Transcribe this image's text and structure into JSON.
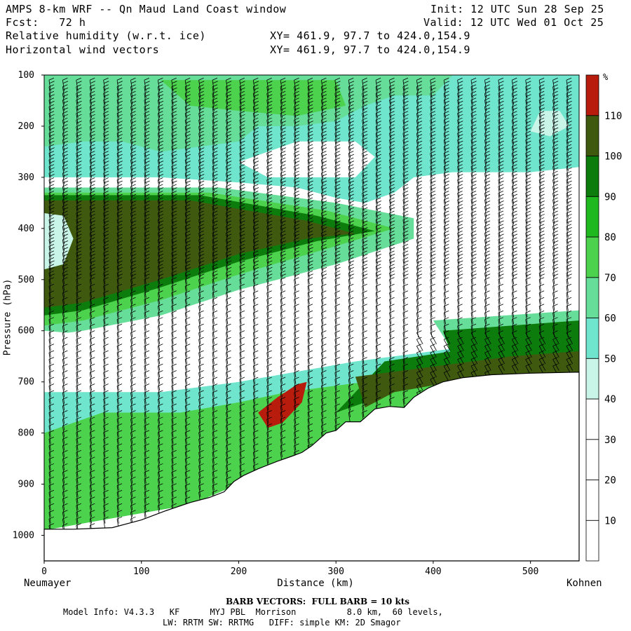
{
  "header": {
    "title": "AMPS 8-km WRF -- Qn Maud Land Coast window",
    "fcst": "Fcst:   72 h",
    "init": "Init: 12 UTC Sun 28 Sep 25",
    "valid": "Valid: 12 UTC Wed 01 Oct 25",
    "field1": "Relative humidity (w.r.t. ice)",
    "field1_xy": "XY= 461.9, 97.7 to 424.0,154.9",
    "field2": "Horizontal wind vectors",
    "field2_xy": "XY= 461.9, 97.7 to 424.0,154.9"
  },
  "chart_data": {
    "type": "cross-section",
    "xlabel": "Distance (km)",
    "ylabel": "Pressure (hPa)",
    "x_start_label": "Neumayer",
    "x_end_label": "Kohnen",
    "xlim": [
      0,
      550
    ],
    "ylim": [
      1050,
      100
    ],
    "x_ticks": [
      0,
      100,
      200,
      300,
      400,
      500
    ],
    "y_ticks": [
      100,
      200,
      300,
      400,
      500,
      600,
      700,
      800,
      900,
      1000
    ],
    "colorbar": {
      "unit": "%",
      "levels": [
        "10",
        "20",
        "30",
        "40",
        "50",
        "60",
        "70",
        "80",
        "90",
        "100",
        "110"
      ],
      "colors": [
        "#ffffff",
        "#ffffff",
        "#ffffff",
        "#c8f5e8",
        "#6ee5cc",
        "#66dd99",
        "#4cd24c",
        "#1fb81f",
        "#0c7d0c",
        "#3f5a0f",
        "#b81c0c"
      ]
    },
    "terrain_surface_hpa": [
      [
        0,
        988
      ],
      [
        30,
        988
      ],
      [
        60,
        984
      ],
      [
        90,
        975
      ],
      [
        120,
        955
      ],
      [
        150,
        935
      ],
      [
        180,
        920
      ],
      [
        200,
        898
      ],
      [
        215,
        880
      ],
      [
        230,
        855
      ],
      [
        245,
        845
      ],
      [
        262,
        835
      ],
      [
        280,
        818
      ],
      [
        300,
        795
      ],
      [
        315,
        780
      ],
      [
        345,
        760
      ],
      [
        370,
        755
      ],
      [
        395,
        748
      ],
      [
        420,
        735
      ],
      [
        450,
        718
      ],
      [
        480,
        700
      ],
      [
        505,
        690
      ],
      [
        530,
        685
      ],
      [
        550,
        682
      ]
    ],
    "terrain_polygon_hpa": [
      [
        0,
        988
      ],
      [
        30,
        988
      ],
      [
        70,
        985
      ],
      [
        100,
        970
      ],
      [
        125,
        952
      ],
      [
        150,
        936
      ],
      [
        170,
        926
      ],
      [
        185,
        915
      ],
      [
        195,
        895
      ],
      [
        205,
        883
      ],
      [
        220,
        870
      ],
      [
        240,
        855
      ],
      [
        255,
        845
      ],
      [
        265,
        838
      ],
      [
        275,
        825
      ],
      [
        290,
        800
      ],
      [
        300,
        795
      ],
      [
        310,
        778
      ],
      [
        325,
        778
      ],
      [
        330,
        770
      ],
      [
        340,
        753
      ],
      [
        355,
        748
      ],
      [
        370,
        750
      ],
      [
        380,
        730
      ],
      [
        395,
        712
      ],
      [
        410,
        700
      ],
      [
        430,
        692
      ],
      [
        460,
        686
      ],
      [
        500,
        683
      ],
      [
        550,
        681
      ]
    ],
    "footer": {
      "barb_note": "BARB VECTORS:  FULL BARB = 10 kts",
      "line1": "Model Info: V4.3.3   KF      MYJ PBL  Morrison          8.0 km,  60 levels,",
      "line2": "LW: RRTM SW: RRTMG   DIFF: simple KM: 2D Smagor"
    }
  }
}
